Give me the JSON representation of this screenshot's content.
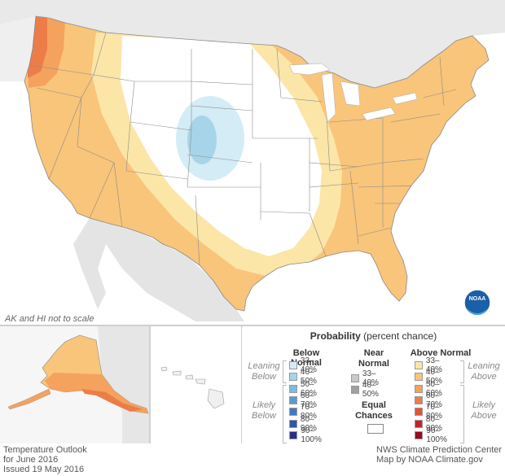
{
  "notes": {
    "scale": "AK and HI not to scale"
  },
  "footer": {
    "left_line1": "Temperature Outlook",
    "left_line2": "for June 2016",
    "left_line3": "Issued 19 May 2016",
    "right_line1": "NWS Climate Prediction Center",
    "right_line2": "Map by NOAA Climate.gov"
  },
  "logo": {
    "text": "NOAA"
  },
  "legend": {
    "title_bold": "Probability",
    "title_rest": " (percent chance)",
    "below_header": "Below Normal",
    "near_header_line1": "Near",
    "near_header_line2": "Normal",
    "above_header": "Above Normal",
    "equal_line1": "Equal",
    "equal_line2": "Chances",
    "leaning_below_1": "Leaning",
    "leaning_below_2": "Below",
    "likely_below_1": "Likely",
    "likely_below_2": "Below",
    "leaning_above_1": "Leaning",
    "leaning_above_2": "Above",
    "likely_above_1": "Likely",
    "likely_above_2": "Above",
    "below": [
      {
        "label": "33–40%",
        "color": "#d4ecf5"
      },
      {
        "label": "40–50%",
        "color": "#a8d4ea"
      },
      {
        "label": "50–60%",
        "color": "#7fbbdd"
      },
      {
        "label": "60–70%",
        "color": "#5a9ccf"
      },
      {
        "label": "70–80%",
        "color": "#3f7cc0"
      },
      {
        "label": "80–90%",
        "color": "#3058a8"
      },
      {
        "label": "90–100%",
        "color": "#282e8c"
      }
    ],
    "near": [
      {
        "label": "33–40%",
        "color": "#c8c8c8"
      },
      {
        "label": "40–50%",
        "color": "#a0a0a0"
      }
    ],
    "above": [
      {
        "label": "33–40%",
        "color": "#fbe6a8"
      },
      {
        "label": "40–50%",
        "color": "#f9c57a"
      },
      {
        "label": "50–60%",
        "color": "#f4a25e"
      },
      {
        "label": "60–70%",
        "color": "#ec7d48"
      },
      {
        "label": "70–80%",
        "color": "#e05535"
      },
      {
        "label": "80–90%",
        "color": "#c7232a"
      },
      {
        "label": "90–100%",
        "color": "#9b0a1f"
      }
    ]
  }
}
